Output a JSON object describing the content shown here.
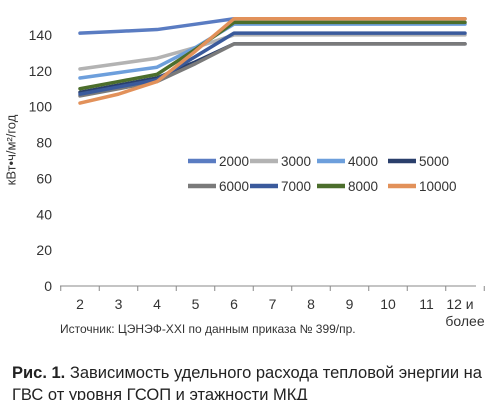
{
  "chart_data": {
    "type": "line",
    "title": "",
    "xlabel": "",
    "ylabel": "кВт•ч/м²/год",
    "categories": [
      "2",
      "3",
      "4",
      "5",
      "6",
      "7",
      "8",
      "9",
      "10",
      "11",
      "12 и более"
    ],
    "ylim": [
      0,
      150
    ],
    "yticks": [
      0,
      20,
      40,
      60,
      80,
      100,
      120,
      140
    ],
    "grid": "none",
    "legend_position": "inside-right",
    "series": [
      {
        "name": "2000",
        "color": "#5a7cc2",
        "values": [
          141,
          142,
          143,
          146,
          149,
          149,
          149,
          149,
          149,
          149,
          149
        ]
      },
      {
        "name": "3000",
        "color": "#b3b3b3",
        "values": [
          121,
          124,
          127,
          133,
          140,
          140,
          140,
          140,
          140,
          140,
          140
        ]
      },
      {
        "name": "4000",
        "color": "#6d9fdc",
        "values": [
          116,
          119,
          122,
          133,
          146,
          146,
          146,
          146,
          146,
          146,
          146
        ]
      },
      {
        "name": "5000",
        "color": "#2a3f6b",
        "values": [
          108,
          112,
          116,
          125,
          135,
          135,
          135,
          135,
          135,
          135,
          135
        ]
      },
      {
        "name": "6000",
        "color": "#7a7a7a",
        "values": [
          106,
          110,
          114,
          124,
          135,
          135,
          135,
          135,
          135,
          135,
          135
        ]
      },
      {
        "name": "7000",
        "color": "#3a5a9c",
        "values": [
          107,
          111,
          115,
          128,
          141,
          141,
          141,
          141,
          141,
          141,
          141
        ]
      },
      {
        "name": "8000",
        "color": "#4c6e2c",
        "values": [
          110,
          114,
          118,
          132,
          147,
          147,
          147,
          147,
          147,
          147,
          147
        ]
      },
      {
        "name": "10000",
        "color": "#e2915a",
        "values": [
          102,
          107,
          114,
          131,
          149,
          149,
          149,
          149,
          149,
          149,
          149
        ]
      }
    ]
  },
  "source_text": "Источник: ЦЭНЭФ-XXI по данным приказа № 399/пр.",
  "caption": {
    "label": "Рис. 1.",
    "text": "Зависимость удельного расхода тепловой энергии на ГВС от уровня ГСОП и этажности МКД"
  }
}
